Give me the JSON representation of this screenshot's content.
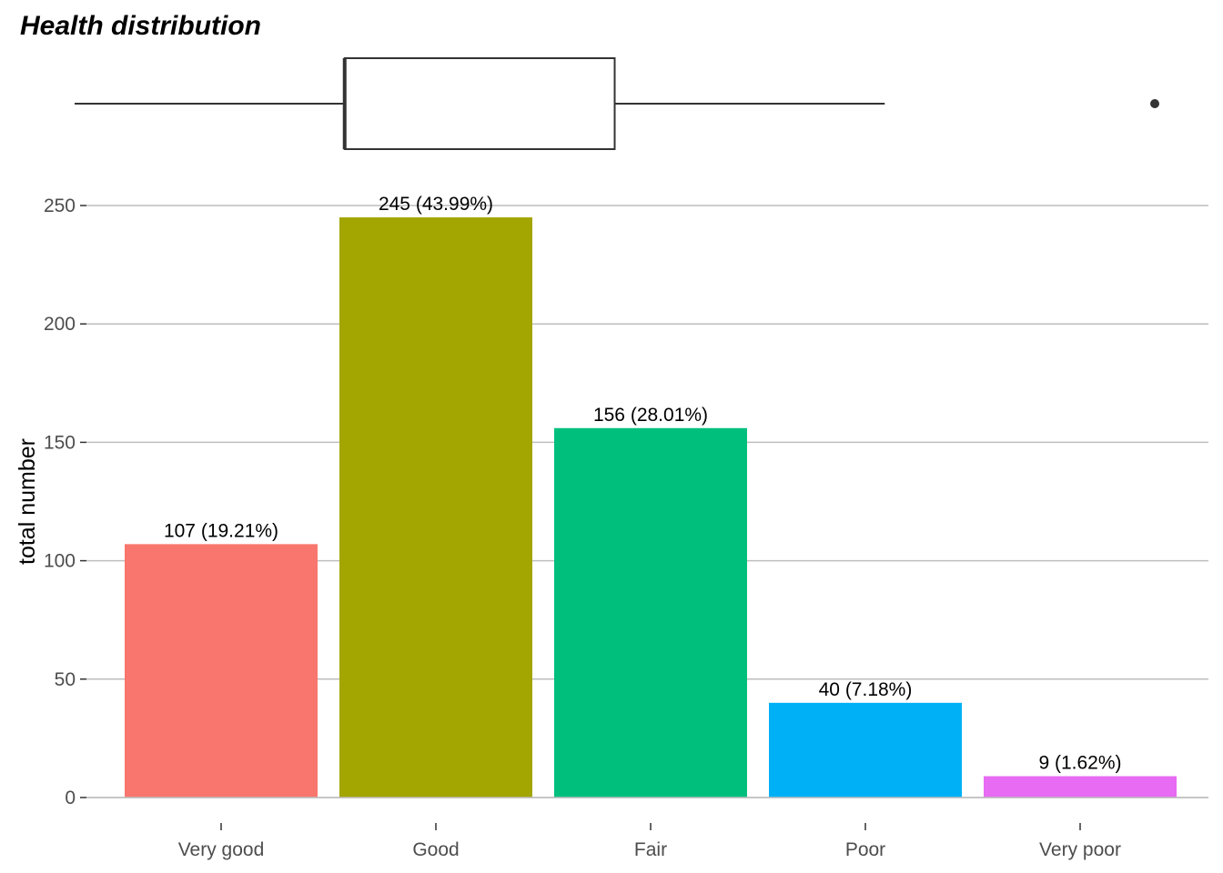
{
  "chart_data": [
    {
      "type": "box",
      "title": "Health distribution",
      "values_on_axis_of": "Very good..Very poor (categories 1-5)",
      "whisker_low": 1,
      "q1": 2,
      "median": 2,
      "q3": 3,
      "whisker_high": 4,
      "outliers": [
        5
      ]
    },
    {
      "type": "bar",
      "categories": [
        "Very good",
        "Good",
        "Fair",
        "Poor",
        "Very poor"
      ],
      "values": [
        107,
        245,
        156,
        40,
        9
      ],
      "labels": [
        "107 (19.21%)",
        "245 (43.99%)",
        "156 (28.01%)",
        "40 (7.18%)",
        "9 (1.62%)"
      ],
      "colors": [
        "#F8766D",
        "#A3A500",
        "#00BF7D",
        "#00B0F6",
        "#E76BF3"
      ],
      "xlabel": "",
      "ylabel": "total number",
      "ylim": [
        0,
        250
      ],
      "yticks": [
        0,
        50,
        100,
        150,
        200,
        250
      ],
      "grid": true,
      "legend": "none"
    }
  ]
}
